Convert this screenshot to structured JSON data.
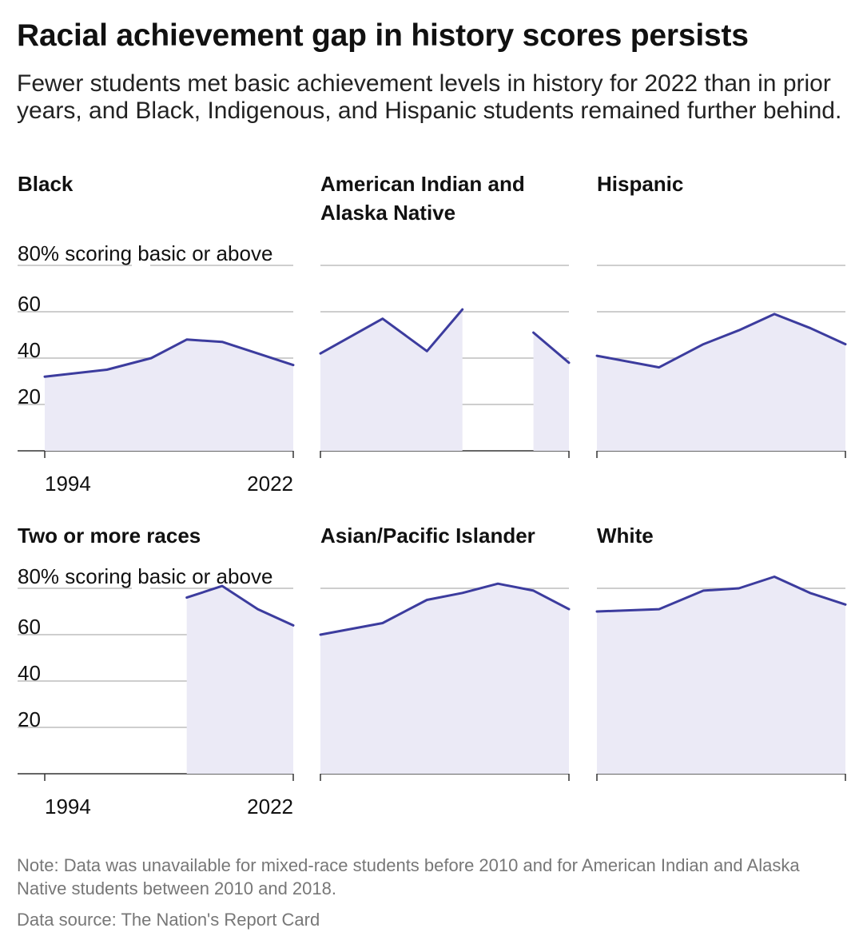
{
  "title": "Racial achievement gap in history scores persists",
  "subtitle": "Fewer students met basic achievement levels in history for 2022 than in prior years, and Black, Indigenous, and Hispanic students remained further behind.",
  "note": "Note: Data was unavailable for mixed-race students before 2010 and for American Indian and Alaska Native students between 2010 and 2018.",
  "source": "Data source: The Nation's Report Card",
  "colors": {
    "line": "#3c3c9e",
    "area": "#ebeaf6",
    "grid": "#bdbdbd",
    "axis": "#333333"
  },
  "chart_data": [
    {
      "type": "area",
      "title": "Black",
      "x": [
        1994,
        2001,
        2006,
        2010,
        2014,
        2018,
        2022
      ],
      "y": [
        32,
        35,
        40,
        48,
        47,
        42,
        37
      ],
      "ylim": [
        0,
        80
      ],
      "yticks": [
        20,
        40,
        60,
        80
      ],
      "ylabel": "80% scoring basic or above",
      "xticks": [
        1994,
        2022
      ]
    },
    {
      "type": "area",
      "title": "American Indian and Alaska Native",
      "x": [
        1994,
        2001,
        2006,
        2010,
        2014,
        2018,
        2022
      ],
      "y": [
        42,
        57,
        43,
        61,
        null,
        51,
        38
      ],
      "ylim": [
        0,
        80
      ],
      "yticks": [
        20,
        40,
        60,
        80
      ]
    },
    {
      "type": "area",
      "title": "Hispanic",
      "x": [
        1994,
        2001,
        2006,
        2010,
        2014,
        2018,
        2022
      ],
      "y": [
        41,
        36,
        46,
        52,
        59,
        53,
        46
      ],
      "ylim": [
        0,
        80
      ],
      "yticks": [
        20,
        40,
        60,
        80
      ]
    },
    {
      "type": "area",
      "title": "Two or more races",
      "x": [
        1994,
        2001,
        2006,
        2010,
        2014,
        2018,
        2022
      ],
      "y": [
        null,
        null,
        null,
        76,
        81,
        71,
        64
      ],
      "ylim": [
        0,
        80
      ],
      "yticks": [
        20,
        40,
        60,
        80
      ],
      "ylabel": "80% scoring basic or above",
      "xticks": [
        1994,
        2022
      ]
    },
    {
      "type": "area",
      "title": "Asian/Pacific Islander",
      "x": [
        1994,
        2001,
        2006,
        2010,
        2014,
        2018,
        2022
      ],
      "y": [
        60,
        65,
        75,
        78,
        82,
        79,
        71
      ],
      "ylim": [
        0,
        80
      ],
      "yticks": [
        20,
        40,
        60,
        80
      ]
    },
    {
      "type": "area",
      "title": "White",
      "x": [
        1994,
        2001,
        2006,
        2010,
        2014,
        2018,
        2022
      ],
      "y": [
        70,
        71,
        79,
        80,
        85,
        78,
        73
      ],
      "ylim": [
        0,
        80
      ],
      "yticks": [
        20,
        40,
        60,
        80
      ]
    }
  ]
}
